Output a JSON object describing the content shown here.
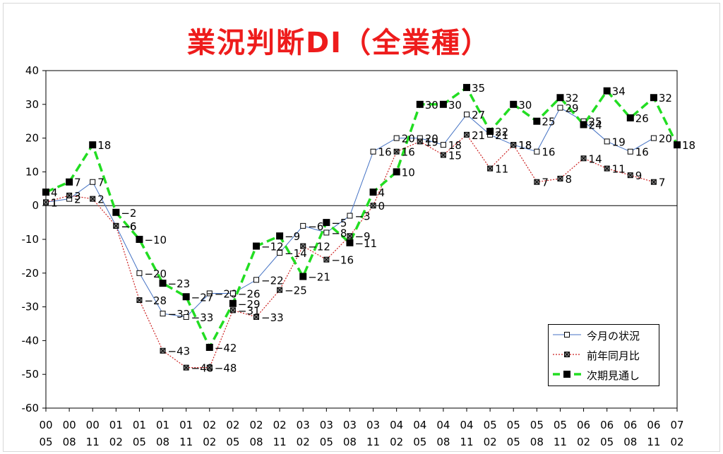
{
  "chart_data": {
    "type": "line",
    "title": "業況判断DI（全業種）",
    "x_labels_top": [
      "00",
      "00",
      "00",
      "01",
      "01",
      "01",
      "01",
      "02",
      "02",
      "02",
      "02",
      "03",
      "03",
      "03",
      "03",
      "04",
      "04",
      "04",
      "04",
      "05",
      "05",
      "05",
      "05",
      "06",
      "06",
      "06",
      "06",
      "07"
    ],
    "x_labels_bottom": [
      "05",
      "08",
      "11",
      "02",
      "05",
      "08",
      "11",
      "02",
      "05",
      "08",
      "11",
      "02",
      "05",
      "08",
      "11",
      "02",
      "05",
      "08",
      "11",
      "02",
      "05",
      "08",
      "11",
      "02",
      "05",
      "08",
      "11",
      "02"
    ],
    "ylim": [
      -60,
      40
    ],
    "yticks": [
      -60,
      -50,
      -40,
      -30,
      -20,
      -10,
      0,
      10,
      20,
      30,
      40
    ],
    "grid": false,
    "legend_position": "bottom-right",
    "series": [
      {
        "name": "今月の状況",
        "color": "#4472c4",
        "style": "solid",
        "marker": "open-square",
        "values": [
          1,
          2,
          7,
          -6,
          -20,
          -32,
          -33,
          -26,
          -26,
          -22,
          -14,
          -6,
          -8,
          -3,
          16,
          20,
          20,
          18,
          27,
          21,
          18,
          16,
          29,
          25,
          19,
          16,
          20,
          null
        ]
      },
      {
        "name": "前年同月比",
        "color": "#cc2020",
        "style": "dotted",
        "marker": "x-square",
        "values": [
          1,
          3,
          2,
          -6,
          -28,
          -43,
          -48,
          -48,
          -31,
          -33,
          -25,
          -12,
          -16,
          -9,
          0,
          16,
          19,
          15,
          21,
          11,
          18,
          7,
          8,
          14,
          11,
          9,
          7,
          null
        ]
      },
      {
        "name": "次期見通し",
        "color": "#22dd22",
        "style": "dashed",
        "marker": "filled-square",
        "values": [
          4,
          7,
          18,
          -2,
          -10,
          -23,
          -27,
          -42,
          -29,
          -12,
          -9,
          -21,
          -5,
          -11,
          4,
          10,
          30,
          30,
          35,
          22,
          30,
          25,
          32,
          24,
          34,
          26,
          32,
          18
        ]
      }
    ]
  }
}
